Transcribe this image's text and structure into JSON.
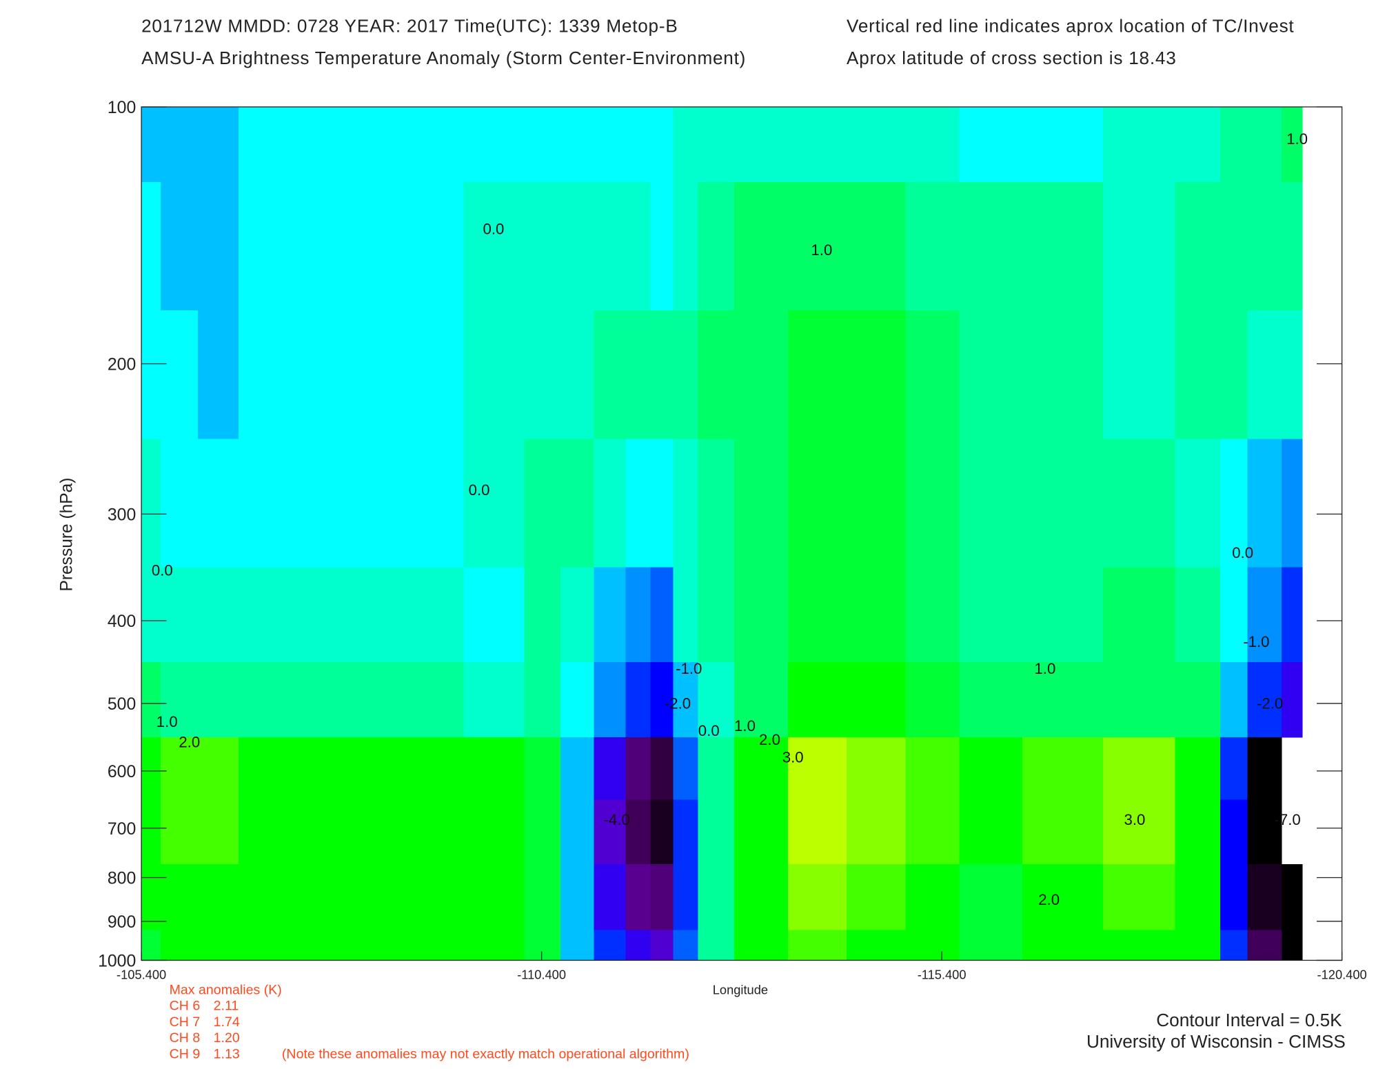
{
  "chart_data": {
    "type": "contour",
    "title_lines": [
      "201712W  MMDD: 0728 YEAR: 2017 Time(UTC): 1339 Metop-B",
      "AMSU-A Brightness Temperature Anomaly (Storm Center-Environment)"
    ],
    "notes_right": [
      "Vertical red line indicates aprox location of TC/Invest",
      "Aprox latitude of cross section is 18.43"
    ],
    "xlabel": "Longitude",
    "ylabel": "Pressure (hPa)",
    "xlim": [
      -105.4,
      -120.4
    ],
    "xticks": [
      {
        "value": -105.4,
        "label": "-105.400"
      },
      {
        "value": -110.4,
        "label": "-110.400"
      },
      {
        "value": -115.4,
        "label": "-115.400"
      },
      {
        "value": -120.4,
        "label": "-120.400"
      }
    ],
    "ylim": [
      100,
      1000
    ],
    "yscale": "log",
    "y_inverted": true,
    "yticks": [
      100,
      200,
      300,
      400,
      500,
      600,
      700,
      800,
      900,
      1000
    ],
    "x": [
      -105.4,
      -105.88,
      -106.33,
      -106.9,
      -107.9,
      -108.92,
      -109.93,
      -110.44,
      -110.83,
      -111.28,
      -111.62,
      -111.9,
      -112.19,
      -112.52,
      -113.09,
      -113.87,
      -114.55,
      -115.34,
      -115.9,
      -116.91,
      -117.92,
      -118.71,
      -119.05,
      -119.39,
      -119.9
    ],
    "y": [
      100,
      150,
      200,
      300,
      400,
      500,
      600,
      700,
      850,
      1000
    ],
    "z": [
      [
        -0.75,
        -0.75,
        -0.75,
        -0.25,
        -0.25,
        -0.25,
        -0.25,
        -0.25,
        -0.25,
        -0.25,
        -0.25,
        -0.25,
        0.25,
        0.25,
        0.25,
        0.25,
        0.25,
        0.25,
        -0.25,
        -0.25,
        0.25,
        0.25,
        0.75,
        0.75,
        1.25
      ],
      [
        -0.25,
        -0.75,
        -0.75,
        -0.25,
        -0.25,
        -0.25,
        0.25,
        0.25,
        0.25,
        0.25,
        0.25,
        -0.25,
        0.25,
        0.75,
        1.25,
        1.25,
        1.25,
        0.75,
        0.75,
        0.75,
        0.25,
        0.75,
        0.75,
        0.75,
        0.75
      ],
      [
        -0.25,
        -0.25,
        -0.75,
        -0.25,
        -0.25,
        -0.25,
        0.25,
        0.25,
        0.25,
        0.75,
        0.75,
        0.75,
        0.75,
        1.25,
        1.25,
        1.75,
        1.75,
        1.25,
        0.75,
        0.75,
        0.25,
        0.75,
        0.75,
        0.25,
        0.25
      ],
      [
        0.25,
        -0.25,
        -0.25,
        -0.25,
        -0.25,
        -0.25,
        0.25,
        0.75,
        0.75,
        0.25,
        -0.25,
        -0.25,
        0.25,
        0.75,
        1.25,
        1.75,
        1.75,
        1.25,
        0.75,
        0.75,
        0.75,
        0.25,
        -0.25,
        -0.75,
        -1.25
      ],
      [
        0.25,
        0.25,
        0.25,
        0.25,
        0.25,
        0.25,
        -0.25,
        0.75,
        0.25,
        -0.75,
        -1.25,
        -1.75,
        0.25,
        0.75,
        1.25,
        1.75,
        1.75,
        1.25,
        0.75,
        0.75,
        1.25,
        0.75,
        -0.25,
        -1.25,
        -2.25
      ],
      [
        1.25,
        0.75,
        0.75,
        0.75,
        0.75,
        0.75,
        0.25,
        0.75,
        -0.25,
        -1.25,
        -2.25,
        -2.75,
        -0.75,
        0.25,
        1.25,
        2.25,
        2.25,
        1.75,
        1.25,
        1.25,
        1.25,
        1.25,
        -0.75,
        -2.25,
        -3.25
      ],
      [
        2.25,
        2.75,
        2.75,
        2.25,
        2.25,
        2.25,
        2.25,
        1.75,
        -0.75,
        -3.25,
        -5.25,
        -6.25,
        -1.75,
        0.75,
        2.25,
        3.75,
        3.25,
        2.75,
        2.25,
        2.75,
        3.25,
        2.25,
        -2.25,
        -7.25,
        null
      ],
      [
        2.25,
        2.75,
        2.75,
        2.25,
        2.25,
        2.25,
        2.25,
        1.75,
        -0.75,
        -3.75,
        -5.75,
        -6.75,
        -2.25,
        0.75,
        2.25,
        3.75,
        3.25,
        2.75,
        2.25,
        2.75,
        3.25,
        2.25,
        -2.75,
        -7.25,
        null
      ],
      [
        2.25,
        2.25,
        2.25,
        2.25,
        2.25,
        2.25,
        2.25,
        1.75,
        -0.75,
        -3.25,
        -4.75,
        -5.25,
        -2.25,
        0.75,
        2.25,
        3.25,
        2.75,
        2.25,
        1.75,
        2.25,
        2.75,
        2.25,
        -2.75,
        -6.75,
        -7.5
      ],
      [
        1.75,
        2.25,
        2.25,
        2.25,
        2.25,
        2.25,
        2.25,
        1.75,
        -0.75,
        -2.25,
        -3.25,
        -3.75,
        -1.75,
        0.75,
        2.25,
        2.75,
        2.25,
        2.25,
        1.75,
        2.25,
        2.25,
        2.25,
        -2.25,
        -5.75,
        -7.25
      ]
    ],
    "colorscale": [
      [
        -100,
        "#000000"
      ],
      [
        -7,
        "#1a0020"
      ],
      [
        -6.5,
        "#300040"
      ],
      [
        -6,
        "#40005a"
      ],
      [
        -5.5,
        "#500078"
      ],
      [
        -5,
        "#5a0090"
      ],
      [
        -4.5,
        "#6000b0"
      ],
      [
        -4,
        "#5000d0"
      ],
      [
        -3.5,
        "#3000f0"
      ],
      [
        -3,
        "#0000ff"
      ],
      [
        -2.5,
        "#0030ff"
      ],
      [
        -2,
        "#0060ff"
      ],
      [
        -1.5,
        "#0090ff"
      ],
      [
        -1,
        "#00c0ff"
      ],
      [
        -0.5,
        "#00ffff"
      ],
      [
        0,
        "#00ffcc"
      ],
      [
        0.5,
        "#00ff99"
      ],
      [
        1,
        "#00ff66"
      ],
      [
        1.5,
        "#00ff33"
      ],
      [
        2,
        "#00ff00"
      ],
      [
        2.5,
        "#44ff00"
      ],
      [
        3,
        "#88ff00"
      ],
      [
        3.5,
        "#bbff00"
      ]
    ],
    "contour_labels": [
      {
        "text": "0.0",
        "x": -109.8,
        "y": 139
      },
      {
        "text": "1.0",
        "x": -113.9,
        "y": 147
      },
      {
        "text": "0.0",
        "x": -109.62,
        "y": 281
      },
      {
        "text": "0.0",
        "x": -105.66,
        "y": 349
      },
      {
        "text": "1.0",
        "x": -105.72,
        "y": 525
      },
      {
        "text": "2.0",
        "x": -106.0,
        "y": 555
      },
      {
        "text": "-1.0",
        "x": -112.24,
        "y": 455
      },
      {
        "text": "-2.0",
        "x": -112.1,
        "y": 500
      },
      {
        "text": "0.0",
        "x": -112.49,
        "y": 538
      },
      {
        "text": "1.0",
        "x": -112.94,
        "y": 531
      },
      {
        "text": "2.0",
        "x": -113.25,
        "y": 551
      },
      {
        "text": "3.0",
        "x": -113.54,
        "y": 578
      },
      {
        "text": "-4.0",
        "x": -111.34,
        "y": 684
      },
      {
        "text": "1.0",
        "x": -116.69,
        "y": 455
      },
      {
        "text": "2.0",
        "x": -116.74,
        "y": 849
      },
      {
        "text": "3.0",
        "x": -117.81,
        "y": 684
      },
      {
        "text": "0.0",
        "x": -119.16,
        "y": 333
      },
      {
        "text": "-1.0",
        "x": -119.33,
        "y": 423
      },
      {
        "text": "-2.0",
        "x": -119.5,
        "y": 500
      },
      {
        "text": "-7.0",
        "x": -119.72,
        "y": 684
      },
      {
        "text": "1.0",
        "x": -119.84,
        "y": 109
      }
    ],
    "max_anomalies_title": "Max anomalies (K)",
    "max_anomalies": [
      {
        "channel": "CH 6",
        "value": 2.11
      },
      {
        "channel": "CH 7",
        "value": 1.74
      },
      {
        "channel": "CH 8",
        "value": 1.2,
        "label": "1.20"
      },
      {
        "channel": "CH 9",
        "value": 1.13
      }
    ],
    "anomaly_note": "(Note these anomalies may not exactly match operational algorithm)",
    "footer": [
      "Contour Interval = 0.5K",
      "University of Wisconsin - CIMSS"
    ]
  }
}
